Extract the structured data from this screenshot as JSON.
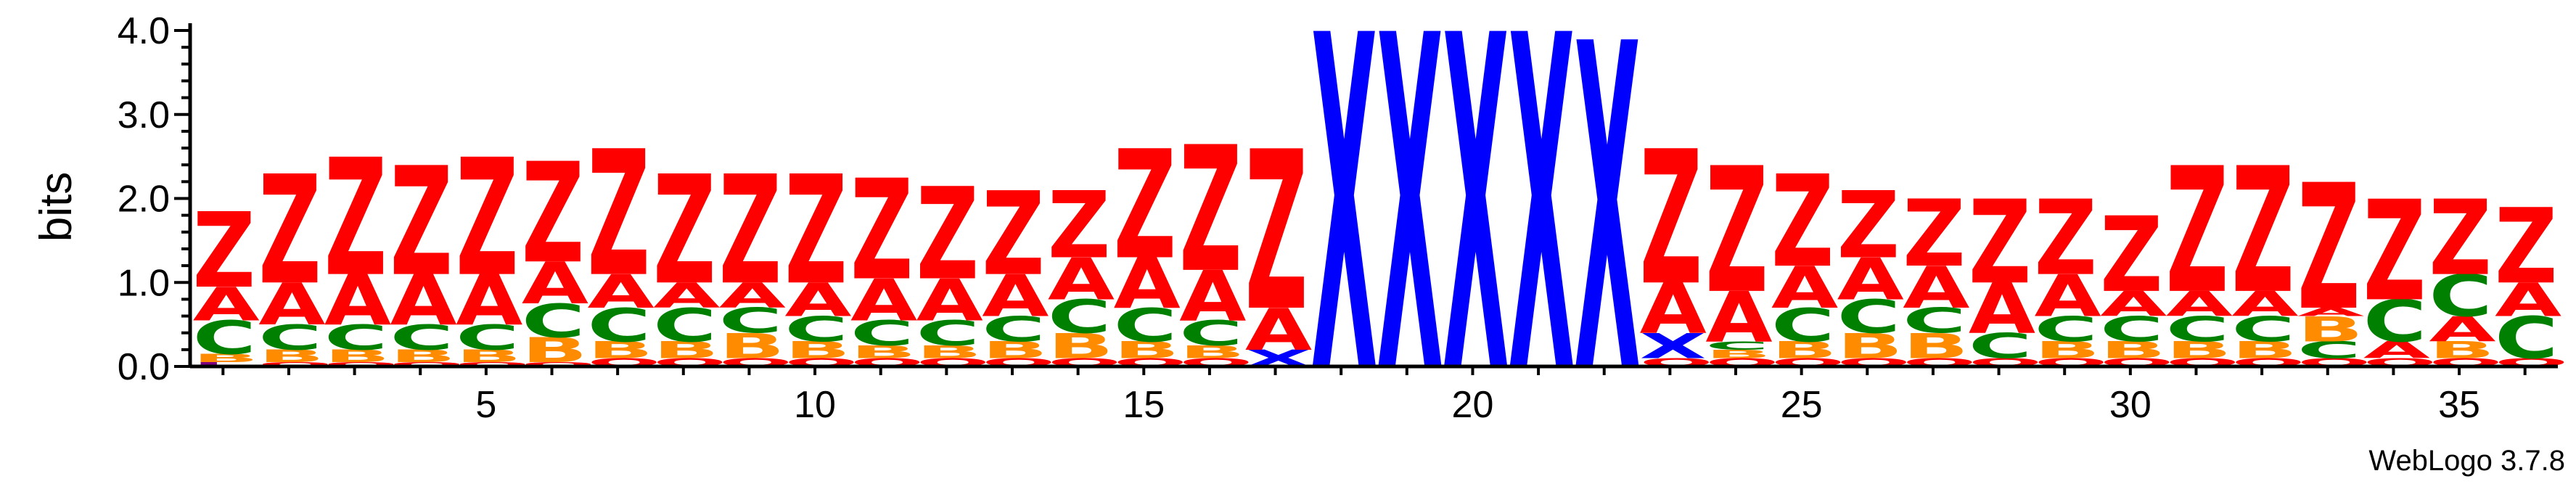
{
  "chart_data": {
    "type": "sequence_logo",
    "ylabel": "bits",
    "ylim": [
      0,
      4.0
    ],
    "y_ticks": [
      "0.0",
      "1.0",
      "2.0",
      "3.0",
      "4.0"
    ],
    "x_ticks": [
      5,
      10,
      15,
      20,
      25,
      30,
      35
    ],
    "positions": 36,
    "colors": {
      "Z": "#ff0000",
      "A": "#ff0000",
      "X": "#0000ff",
      "C": "#008000",
      "B": "#ff8c00",
      "Q": "#ff0000",
      "I": "#800080"
    },
    "columns": [
      [
        [
          "I",
          0.05
        ],
        [
          "B",
          0.1
        ],
        [
          "C",
          0.4
        ],
        [
          "A",
          0.4
        ],
        [
          "Z",
          0.9
        ]
      ],
      [
        [
          "Q",
          0.05
        ],
        [
          "B",
          0.15
        ],
        [
          "C",
          0.3
        ],
        [
          "A",
          0.5
        ],
        [
          "Z",
          1.3
        ]
      ],
      [
        [
          "Q",
          0.05
        ],
        [
          "B",
          0.15
        ],
        [
          "C",
          0.3
        ],
        [
          "A",
          0.6
        ],
        [
          "Z",
          1.4
        ]
      ],
      [
        [
          "Q",
          0.05
        ],
        [
          "B",
          0.15
        ],
        [
          "C",
          0.3
        ],
        [
          "A",
          0.6
        ],
        [
          "Z",
          1.3
        ]
      ],
      [
        [
          "Q",
          0.05
        ],
        [
          "B",
          0.15
        ],
        [
          "C",
          0.3
        ],
        [
          "A",
          0.6
        ],
        [
          "Z",
          1.4
        ]
      ],
      [
        [
          "Q",
          0.05
        ],
        [
          "B",
          0.3
        ],
        [
          "C",
          0.4
        ],
        [
          "A",
          0.5
        ],
        [
          "Z",
          1.2
        ]
      ],
      [
        [
          "Q",
          0.1
        ],
        [
          "B",
          0.2
        ],
        [
          "C",
          0.4
        ],
        [
          "A",
          0.4
        ],
        [
          "Z",
          1.5
        ]
      ],
      [
        [
          "Q",
          0.1
        ],
        [
          "B",
          0.2
        ],
        [
          "C",
          0.4
        ],
        [
          "A",
          0.3
        ],
        [
          "Z",
          1.3
        ]
      ],
      [
        [
          "Q",
          0.1
        ],
        [
          "B",
          0.3
        ],
        [
          "C",
          0.3
        ],
        [
          "A",
          0.3
        ],
        [
          "Z",
          1.3
        ]
      ],
      [
        [
          "Q",
          0.1
        ],
        [
          "B",
          0.2
        ],
        [
          "C",
          0.3
        ],
        [
          "A",
          0.4
        ],
        [
          "Z",
          1.3
        ]
      ],
      [
        [
          "Q",
          0.1
        ],
        [
          "B",
          0.15
        ],
        [
          "C",
          0.3
        ],
        [
          "A",
          0.5
        ],
        [
          "Z",
          1.2
        ]
      ],
      [
        [
          "Q",
          0.1
        ],
        [
          "B",
          0.15
        ],
        [
          "C",
          0.3
        ],
        [
          "A",
          0.5
        ],
        [
          "Z",
          1.1
        ]
      ],
      [
        [
          "Q",
          0.1
        ],
        [
          "B",
          0.2
        ],
        [
          "C",
          0.3
        ],
        [
          "A",
          0.5
        ],
        [
          "Z",
          1.0
        ]
      ],
      [
        [
          "Q",
          0.1
        ],
        [
          "B",
          0.3
        ],
        [
          "C",
          0.4
        ],
        [
          "A",
          0.5
        ],
        [
          "Z",
          0.8
        ]
      ],
      [
        [
          "Q",
          0.1
        ],
        [
          "B",
          0.2
        ],
        [
          "C",
          0.4
        ],
        [
          "A",
          0.6
        ],
        [
          "Z",
          1.3
        ]
      ],
      [
        [
          "Q",
          0.1
        ],
        [
          "B",
          0.15
        ],
        [
          "C",
          0.3
        ],
        [
          "A",
          0.6
        ],
        [
          "Z",
          1.5
        ]
      ],
      [
        [
          "X",
          0.2
        ],
        [
          "A",
          0.5
        ],
        [
          "Z",
          1.9
        ]
      ],
      [
        [
          "X",
          4.0
        ]
      ],
      [
        [
          "X",
          4.0
        ]
      ],
      [
        [
          "X",
          4.0
        ]
      ],
      [
        [
          "X",
          4.0
        ]
      ],
      [
        [
          "X",
          3.9
        ]
      ],
      [
        [
          "Q",
          0.1
        ],
        [
          "X",
          0.3
        ],
        [
          "A",
          0.6
        ],
        [
          "Z",
          1.6
        ]
      ],
      [
        [
          "Q",
          0.1
        ],
        [
          "B",
          0.1
        ],
        [
          "C",
          0.1
        ],
        [
          "A",
          0.6
        ],
        [
          "Z",
          1.5
        ]
      ],
      [
        [
          "Q",
          0.1
        ],
        [
          "B",
          0.2
        ],
        [
          "C",
          0.4
        ],
        [
          "A",
          0.5
        ],
        [
          "Z",
          1.1
        ]
      ],
      [
        [
          "Q",
          0.1
        ],
        [
          "B",
          0.3
        ],
        [
          "C",
          0.4
        ],
        [
          "A",
          0.5
        ],
        [
          "Z",
          0.8
        ]
      ],
      [
        [
          "Q",
          0.1
        ],
        [
          "B",
          0.3
        ],
        [
          "C",
          0.3
        ],
        [
          "A",
          0.5
        ],
        [
          "Z",
          0.8
        ]
      ],
      [
        [
          "Q",
          0.1
        ],
        [
          "C",
          0.3
        ],
        [
          "A",
          0.6
        ],
        [
          "Z",
          1.0
        ]
      ],
      [
        [
          "Q",
          0.1
        ],
        [
          "B",
          0.2
        ],
        [
          "C",
          0.3
        ],
        [
          "A",
          0.5
        ],
        [
          "Z",
          0.9
        ]
      ],
      [
        [
          "Q",
          0.1
        ],
        [
          "B",
          0.2
        ],
        [
          "C",
          0.3
        ],
        [
          "A",
          0.3
        ],
        [
          "Z",
          0.9
        ]
      ],
      [
        [
          "Q",
          0.1
        ],
        [
          "B",
          0.2
        ],
        [
          "C",
          0.3
        ],
        [
          "A",
          0.3
        ],
        [
          "Z",
          1.5
        ]
      ],
      [
        [
          "Q",
          0.1
        ],
        [
          "B",
          0.2
        ],
        [
          "C",
          0.3
        ],
        [
          "A",
          0.3
        ],
        [
          "Z",
          1.5
        ]
      ],
      [
        [
          "Q",
          0.1
        ],
        [
          "C",
          0.2
        ],
        [
          "B",
          0.3
        ],
        [
          "A",
          0.1
        ],
        [
          "Z",
          1.5
        ]
      ],
      [
        [
          "Q",
          0.1
        ],
        [
          "A",
          0.2
        ],
        [
          "C",
          0.5
        ],
        [
          "Z",
          1.2
        ]
      ],
      [
        [
          "Q",
          0.1
        ],
        [
          "B",
          0.2
        ],
        [
          "A",
          0.3
        ],
        [
          "C",
          0.5
        ],
        [
          "Z",
          0.9
        ]
      ],
      [
        [
          "Q",
          0.1
        ],
        [
          "C",
          0.5
        ],
        [
          "A",
          0.4
        ],
        [
          "Z",
          0.9
        ]
      ]
    ]
  },
  "credit": "WebLogo 3.7.8"
}
